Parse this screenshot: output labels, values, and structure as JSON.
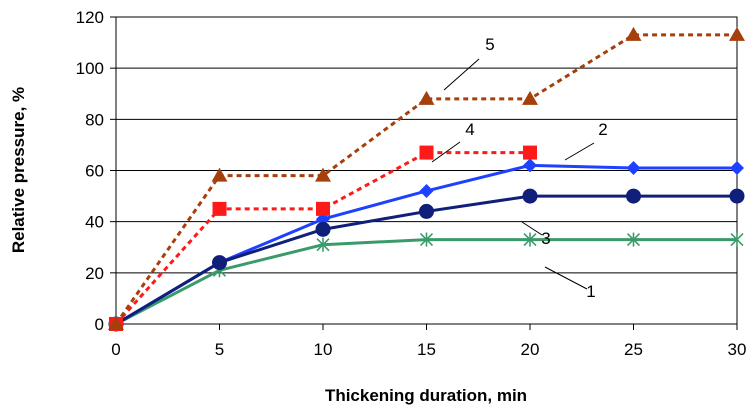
{
  "chart_data": {
    "type": "line",
    "xlabel": "Thickening duration, min",
    "ylabel": "Relative pressure, %",
    "xlim": [
      0,
      30
    ],
    "ylim": [
      0,
      120
    ],
    "x_ticks": [
      "0",
      "5",
      "10",
      "15",
      "20",
      "25",
      "30"
    ],
    "y_ticks": [
      "0",
      "20",
      "40",
      "60",
      "80",
      "100",
      "120"
    ],
    "grid": "horizontal",
    "legend": "none",
    "series": [
      {
        "name": "1",
        "color": "#3a9a6a",
        "line": "solid",
        "marker": "asterisk",
        "x": [
          0,
          5,
          10,
          15,
          20,
          25,
          30
        ],
        "y": [
          0,
          21,
          31,
          33,
          33,
          33,
          33
        ]
      },
      {
        "name": "2",
        "color": "#1e40ff",
        "line": "solid",
        "marker": "diamond",
        "x": [
          0,
          5,
          10,
          15,
          20,
          25,
          30
        ],
        "y": [
          0,
          24,
          41,
          52,
          62,
          61,
          61
        ]
      },
      {
        "name": "3",
        "color": "#0f1f7a",
        "line": "solid",
        "marker": "circle",
        "x": [
          0,
          5,
          10,
          15,
          20,
          25,
          30
        ],
        "y": [
          0,
          24,
          37,
          44,
          50,
          50,
          50
        ]
      },
      {
        "name": "4",
        "color": "#ff1a1a",
        "line": "dotted",
        "marker": "square",
        "x": [
          0,
          5,
          10,
          15,
          20
        ],
        "y": [
          0,
          45,
          45,
          67,
          67
        ]
      },
      {
        "name": "5",
        "color": "#a5400c",
        "line": "dotted",
        "marker": "triangle",
        "x": [
          0,
          5,
          10,
          15,
          20,
          25,
          30
        ],
        "y": [
          0,
          58,
          58,
          88,
          88,
          113,
          113
        ]
      }
    ]
  }
}
